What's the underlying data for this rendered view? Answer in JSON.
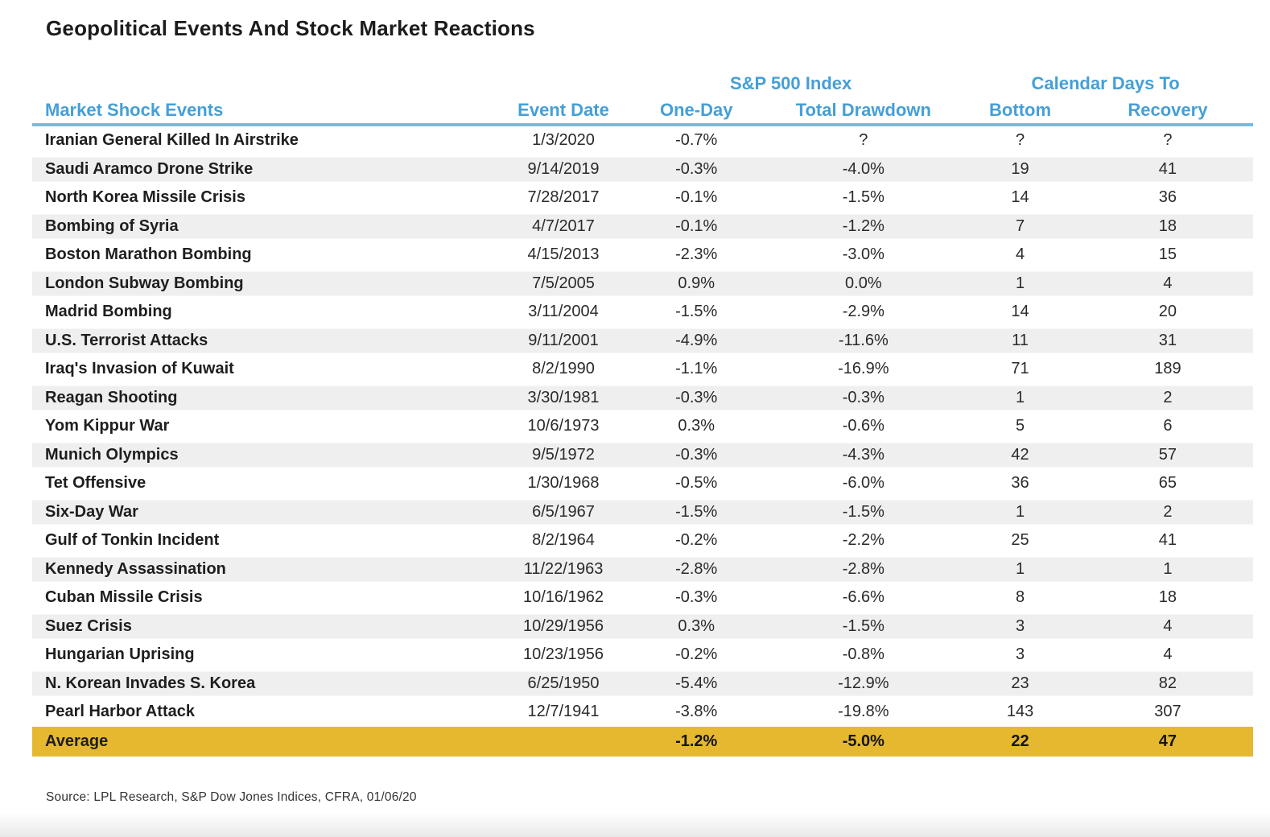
{
  "title": "Geopolitical Events And Stock Market Reactions",
  "source": "Source: LPL Research, S&P Dow Jones Indices, CFRA, 01/06/20",
  "colors": {
    "header_blue": "#459fd7",
    "underline_blue": "#74bce4",
    "stripe_gray": "#efefef",
    "average_gold": "#e6b82f"
  },
  "chart_data": {
    "type": "table",
    "title": "Geopolitical Events And Stock Market Reactions",
    "column_groups": {
      "sp500": "S&P 500 Index",
      "calendar": "Calendar Days To"
    },
    "columns": [
      "Market Shock Events",
      "Event Date",
      "One-Day",
      "Total Drawdown",
      "Bottom",
      "Recovery"
    ],
    "rows": [
      [
        "Iranian General Killed In Airstrike",
        "1/3/2020",
        "-0.7%",
        "?",
        "?",
        "?"
      ],
      [
        "Saudi Aramco Drone Strike",
        "9/14/2019",
        "-0.3%",
        "-4.0%",
        "19",
        "41"
      ],
      [
        "North Korea Missile Crisis",
        "7/28/2017",
        "-0.1%",
        "-1.5%",
        "14",
        "36"
      ],
      [
        "Bombing of Syria",
        "4/7/2017",
        "-0.1%",
        "-1.2%",
        "7",
        "18"
      ],
      [
        "Boston Marathon Bombing",
        "4/15/2013",
        "-2.3%",
        "-3.0%",
        "4",
        "15"
      ],
      [
        "London Subway Bombing",
        "7/5/2005",
        "0.9%",
        "0.0%",
        "1",
        "4"
      ],
      [
        "Madrid Bombing",
        "3/11/2004",
        "-1.5%",
        "-2.9%",
        "14",
        "20"
      ],
      [
        "U.S. Terrorist Attacks",
        "9/11/2001",
        "-4.9%",
        "-11.6%",
        "11",
        "31"
      ],
      [
        "Iraq's Invasion of Kuwait",
        "8/2/1990",
        "-1.1%",
        "-16.9%",
        "71",
        "189"
      ],
      [
        "Reagan Shooting",
        "3/30/1981",
        "-0.3%",
        "-0.3%",
        "1",
        "2"
      ],
      [
        "Yom Kippur War",
        "10/6/1973",
        "0.3%",
        "-0.6%",
        "5",
        "6"
      ],
      [
        "Munich Olympics",
        "9/5/1972",
        "-0.3%",
        "-4.3%",
        "42",
        "57"
      ],
      [
        "Tet Offensive",
        "1/30/1968",
        "-0.5%",
        "-6.0%",
        "36",
        "65"
      ],
      [
        "Six-Day War",
        "6/5/1967",
        "-1.5%",
        "-1.5%",
        "1",
        "2"
      ],
      [
        "Gulf of Tonkin Incident",
        "8/2/1964",
        "-0.2%",
        "-2.2%",
        "25",
        "41"
      ],
      [
        "Kennedy Assassination",
        "11/22/1963",
        "-2.8%",
        "-2.8%",
        "1",
        "1"
      ],
      [
        "Cuban Missile Crisis",
        "10/16/1962",
        "-0.3%",
        "-6.6%",
        "8",
        "18"
      ],
      [
        "Suez Crisis",
        "10/29/1956",
        "0.3%",
        "-1.5%",
        "3",
        "4"
      ],
      [
        "Hungarian Uprising",
        "10/23/1956",
        "-0.2%",
        "-0.8%",
        "3",
        "4"
      ],
      [
        "N. Korean Invades S. Korea",
        "6/25/1950",
        "-5.4%",
        "-12.9%",
        "23",
        "82"
      ],
      [
        "Pearl Harbor Attack",
        "12/7/1941",
        "-3.8%",
        "-19.8%",
        "143",
        "307"
      ]
    ],
    "average": [
      "Average",
      "",
      "-1.2%",
      "-5.0%",
      "22",
      "47"
    ],
    "source": "Source: LPL Research, S&P Dow Jones Indices, CFRA, 01/06/20"
  }
}
